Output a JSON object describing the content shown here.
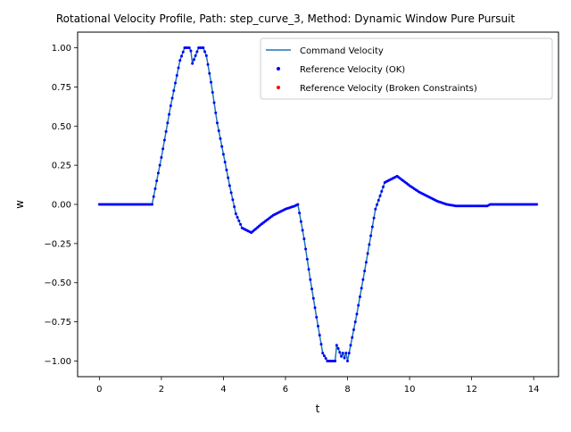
{
  "chart_data": {
    "type": "line",
    "title": "Rotational Velocity Profile, Path: step_curve_3, Method: Dynamic Window Pure Pursuit",
    "xlabel": "t",
    "ylabel": "w",
    "xlim": [
      -0.7,
      14.8
    ],
    "ylim": [
      -1.1,
      1.1
    ],
    "xticks": [
      0,
      2,
      4,
      6,
      8,
      10,
      12,
      14
    ],
    "xtick_labels": [
      "0",
      "2",
      "4",
      "6",
      "8",
      "10",
      "12",
      "14"
    ],
    "yticks": [
      -1.0,
      -0.75,
      -0.5,
      -0.25,
      0.0,
      0.25,
      0.5,
      0.75,
      1.0
    ],
    "ytick_labels": [
      "−1.00",
      "−0.75",
      "−0.50",
      "−0.25",
      "0.00",
      "0.25",
      "0.50",
      "0.75",
      "1.00"
    ],
    "grid": false,
    "legend_position": "top-right",
    "colors": {
      "command": "#1f77b4",
      "ok": "#0000ff",
      "broken": "#ff0000"
    },
    "series": [
      {
        "name": "Command Velocity",
        "style": "line",
        "x": [
          0,
          1.65,
          1.7,
          2.0,
          2.3,
          2.6,
          2.75,
          2.9,
          2.95,
          3.0,
          3.1,
          3.2,
          3.35,
          3.45,
          3.6,
          3.8,
          4.0,
          4.2,
          4.4,
          4.6,
          4.9,
          5.2,
          5.6,
          6.0,
          6.3,
          6.4,
          6.6,
          6.8,
          7.0,
          7.2,
          7.35,
          7.45,
          7.6,
          7.65,
          7.7,
          7.8,
          7.85,
          7.9,
          7.95,
          8.0,
          8.05,
          8.1,
          8.3,
          8.6,
          8.9,
          9.2,
          9.4,
          9.6,
          9.8,
          10.0,
          10.3,
          10.6,
          10.9,
          11.2,
          11.5,
          12.5,
          12.6,
          14.1
        ],
        "y": [
          0,
          0,
          0,
          0.3,
          0.63,
          0.92,
          1.0,
          1.0,
          0.98,
          0.9,
          0.95,
          1.0,
          1.0,
          0.95,
          0.78,
          0.52,
          0.32,
          0.12,
          -0.06,
          -0.15,
          -0.18,
          -0.13,
          -0.07,
          -0.03,
          -0.01,
          0,
          -0.22,
          -0.48,
          -0.72,
          -0.95,
          -1.0,
          -1.0,
          -1.0,
          -0.9,
          -0.92,
          -0.97,
          -0.95,
          -0.98,
          -0.95,
          -1.0,
          -0.95,
          -0.9,
          -0.7,
          -0.37,
          -0.03,
          0.14,
          0.16,
          0.18,
          0.15,
          0.12,
          0.08,
          0.05,
          0.02,
          0.0,
          -0.01,
          -0.01,
          0,
          0
        ]
      },
      {
        "name": "Reference Velocity (OK)",
        "style": "markers",
        "x": [
          0,
          1.65,
          1.7,
          2.0,
          2.3,
          2.6,
          2.75,
          2.9,
          2.95,
          3.0,
          3.1,
          3.2,
          3.35,
          3.45,
          3.6,
          3.8,
          4.0,
          4.2,
          4.4,
          4.6,
          4.9,
          5.2,
          5.6,
          6.0,
          6.3,
          6.4,
          6.6,
          6.8,
          7.0,
          7.2,
          7.35,
          7.45,
          7.6,
          7.65,
          7.7,
          7.8,
          7.85,
          7.9,
          7.95,
          8.0,
          8.05,
          8.1,
          8.3,
          8.6,
          8.9,
          9.2,
          9.4,
          9.6,
          9.8,
          10.0,
          10.3,
          10.6,
          10.9,
          11.2,
          11.5,
          12.5,
          12.6,
          14.1
        ],
        "y": [
          0,
          0,
          0,
          0.3,
          0.63,
          0.92,
          1.0,
          1.0,
          0.98,
          0.9,
          0.95,
          1.0,
          1.0,
          0.95,
          0.78,
          0.52,
          0.32,
          0.12,
          -0.06,
          -0.15,
          -0.18,
          -0.13,
          -0.07,
          -0.03,
          -0.01,
          0,
          -0.22,
          -0.48,
          -0.72,
          -0.95,
          -1.0,
          -1.0,
          -1.0,
          -0.9,
          -0.92,
          -0.97,
          -0.95,
          -0.98,
          -0.95,
          -1.0,
          -0.95,
          -0.9,
          -0.7,
          -0.37,
          -0.03,
          0.14,
          0.16,
          0.18,
          0.15,
          0.12,
          0.08,
          0.05,
          0.02,
          0.0,
          -0.01,
          -0.01,
          0,
          0
        ]
      },
      {
        "name": "Reference Velocity (Broken Constraints)",
        "style": "markers",
        "x": [],
        "y": []
      }
    ]
  }
}
